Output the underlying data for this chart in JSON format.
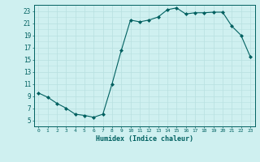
{
  "x": [
    0,
    1,
    2,
    3,
    4,
    5,
    6,
    7,
    8,
    9,
    10,
    11,
    12,
    13,
    14,
    15,
    16,
    17,
    18,
    19,
    20,
    21,
    22,
    23
  ],
  "y": [
    9.5,
    8.8,
    7.8,
    7.0,
    6.0,
    5.8,
    5.5,
    6.0,
    11.0,
    16.5,
    21.5,
    21.2,
    21.5,
    22.0,
    23.2,
    23.5,
    22.5,
    22.7,
    22.7,
    22.8,
    22.8,
    20.5,
    19.0,
    15.5
  ],
  "line_color": "#006060",
  "marker_color": "#006060",
  "bg_color": "#cff0f0",
  "grid_color": "#b8e0e0",
  "xlabel": "Humidex (Indice chaleur)",
  "xlim": [
    -0.5,
    23.5
  ],
  "ylim": [
    4,
    24
  ],
  "yticks": [
    5,
    7,
    9,
    11,
    13,
    15,
    17,
    19,
    21,
    23
  ],
  "xticks": [
    0,
    1,
    2,
    3,
    4,
    5,
    6,
    7,
    8,
    9,
    10,
    11,
    12,
    13,
    14,
    15,
    16,
    17,
    18,
    19,
    20,
    21,
    22,
    23
  ],
  "tick_fontsize_x": 4.5,
  "tick_fontsize_y": 5.5,
  "xlabel_fontsize": 6.0,
  "linewidth": 0.8,
  "markersize": 2.0
}
